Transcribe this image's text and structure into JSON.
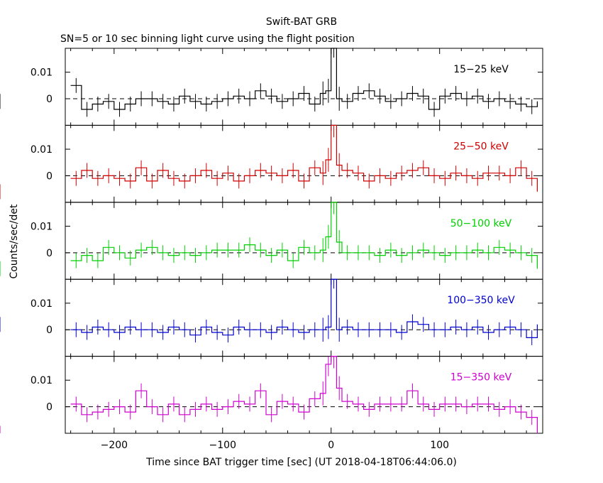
{
  "chart_data": {
    "type": "line",
    "title": "Swift-BAT GRB",
    "subtitle": "SN=5 or 10 sec binning light curve using the flight position",
    "xlabel": "Time since BAT trigger time [sec] (UT 2018-04-18T06:44:06.0)",
    "ylabel": "Counts/sec/det",
    "xlim": [
      -245,
      195
    ],
    "xticks": [
      -200,
      -100,
      0,
      100
    ],
    "xtick_labels": [
      "−200",
      "−100",
      "0",
      "100"
    ],
    "ylim": [
      -0.01,
      0.019
    ],
    "yticks": [
      0,
      0.01
    ],
    "ytick_labels": [
      "0",
      "0.01"
    ],
    "zero_line": "dashed",
    "bin_edges": [
      -240,
      -230,
      -220,
      -210,
      -200,
      -190,
      -180,
      -170,
      -160,
      -150,
      -140,
      -130,
      -120,
      -110,
      -100,
      -90,
      -80,
      -70,
      -60,
      -50,
      -40,
      -30,
      -20,
      -10,
      -5,
      0,
      5,
      10,
      20,
      30,
      40,
      50,
      60,
      70,
      80,
      90,
      100,
      110,
      120,
      130,
      140,
      150,
      160,
      170,
      180,
      190
    ],
    "series": [
      {
        "name": "15-25 keV",
        "color": "#000000",
        "values": [
          0.005,
          -0.004,
          -0.002,
          -0.001,
          -0.004,
          -0.002,
          0.0,
          0.0,
          -0.001,
          -0.002,
          0.001,
          -0.001,
          -0.002,
          -0.001,
          0.0,
          0.001,
          0.0,
          0.003,
          0.001,
          -0.001,
          0.0,
          0.002,
          -0.002,
          0.002,
          0.003,
          0.02,
          0.0,
          -0.001,
          0.002,
          0.003,
          0.001,
          -0.001,
          0.0,
          0.002,
          0.001,
          -0.004,
          0.001,
          0.002,
          0.0,
          0.001,
          -0.001,
          0.0,
          -0.001,
          -0.002,
          -0.003,
          -0.001
        ]
      },
      {
        "name": "25-50 keV",
        "color": "#d00000",
        "values": [
          -0.001,
          0.002,
          -0.001,
          0.0,
          -0.001,
          -0.002,
          0.003,
          -0.002,
          0.002,
          -0.001,
          -0.002,
          0.0,
          0.002,
          -0.001,
          0.001,
          -0.002,
          0.0,
          0.002,
          0.001,
          0.0,
          0.002,
          -0.002,
          0.003,
          0.001,
          0.006,
          0.019,
          0.004,
          0.002,
          0.001,
          -0.002,
          0.0,
          -0.001,
          0.001,
          0.002,
          0.003,
          0.0,
          -0.001,
          0.001,
          0.0,
          -0.001,
          0.001,
          0.001,
          0.0,
          0.003,
          -0.001,
          -0.006
        ]
      },
      {
        "name": "50-100 keV",
        "color": "#00d000",
        "values": [
          -0.003,
          -0.001,
          -0.003,
          0.002,
          0.0,
          -0.002,
          0.001,
          0.002,
          0.0,
          -0.001,
          0.0,
          -0.001,
          0.0,
          0.001,
          0.001,
          0.001,
          0.003,
          0.001,
          -0.001,
          0.001,
          -0.003,
          0.002,
          0.0,
          0.001,
          0.006,
          0.019,
          0.004,
          0.0,
          0.0,
          0.0,
          -0.001,
          0.001,
          -0.001,
          0.0,
          0.001,
          0.0,
          -0.001,
          0.0,
          0.0,
          0.001,
          0.0,
          0.002,
          0.001,
          0.0,
          -0.001,
          -0.006
        ]
      },
      {
        "name": "100-350 keV",
        "color": "#0000d0",
        "values": [
          0.0,
          -0.001,
          0.001,
          0.0,
          -0.001,
          0.001,
          0.0,
          0.0,
          -0.001,
          0.001,
          0.0,
          -0.002,
          0.001,
          -0.001,
          -0.002,
          0.001,
          0.0,
          0.0,
          -0.001,
          0.001,
          0.0,
          -0.001,
          0.0,
          0.0,
          0.001,
          0.02,
          0.0,
          0.001,
          0.0,
          0.0,
          0.0,
          0.0,
          -0.001,
          0.003,
          0.002,
          0.0,
          0.0,
          0.001,
          0.0,
          0.001,
          -0.001,
          0.0,
          0.001,
          0.0,
          -0.003,
          0.002
        ]
      },
      {
        "name": "15-350 keV",
        "color": "#d000d0",
        "values": [
          0.001,
          -0.003,
          -0.002,
          -0.001,
          0.0,
          -0.002,
          0.006,
          0.0,
          -0.003,
          0.001,
          -0.003,
          -0.001,
          0.001,
          -0.001,
          0.0,
          0.002,
          0.001,
          0.006,
          -0.003,
          0.002,
          0.001,
          -0.002,
          0.003,
          0.005,
          0.016,
          0.019,
          0.007,
          0.002,
          0.001,
          -0.001,
          0.001,
          0.001,
          0.001,
          0.006,
          0.001,
          -0.001,
          0.001,
          0.001,
          0.0,
          0.001,
          0.001,
          -0.001,
          0.0,
          -0.002,
          -0.004,
          -0.01
        ]
      }
    ]
  }
}
